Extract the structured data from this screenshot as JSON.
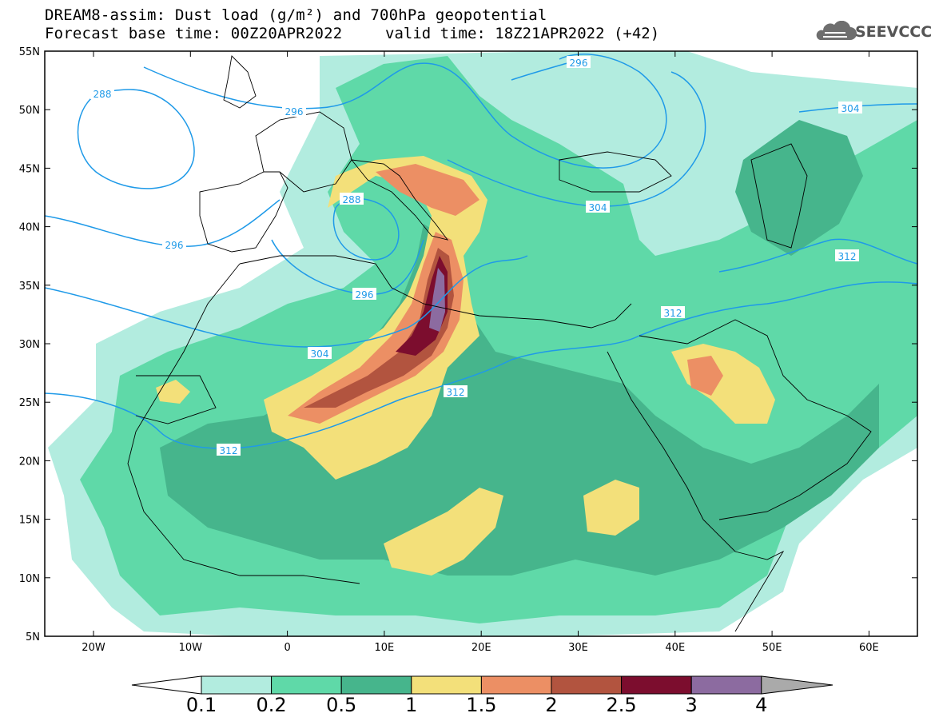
{
  "header": {
    "line1": "DREAM8-assim: Dust load (g/m²) and 700hPa geopotential",
    "line2": "Forecast base time: 00Z20APR2022",
    "line2b": "valid time: 18Z21APR2022 (+42)",
    "logo_text": "SEEVCCC"
  },
  "axes": {
    "lat_labels": [
      "55N",
      "50N",
      "45N",
      "40N",
      "35N",
      "30N",
      "25N",
      "20N",
      "15N",
      "10N",
      "5N"
    ],
    "lon_labels": [
      "20W",
      "10W",
      "0",
      "10E",
      "20E",
      "30E",
      "40E",
      "50E",
      "60E"
    ]
  },
  "contours": {
    "labels": [
      "288",
      "296",
      "296",
      "304",
      "304",
      "312",
      "312",
      "312",
      "296",
      "288",
      "296",
      "304",
      "304",
      "312"
    ]
  },
  "colorbar": {
    "labels": [
      "0.1",
      "0.2",
      "0.5",
      "1",
      "1.5",
      "2",
      "2.5",
      "3",
      "4"
    ],
    "colors": [
      "#ffffff",
      "#b2ecdf",
      "#5fd9a8",
      "#46b58c",
      "#f3e07a",
      "#ec8f64",
      "#b2543f",
      "#7c0d2e",
      "#8c6ba0",
      "#aaaaaa"
    ]
  },
  "palette": {
    "ocean": "#ffffff",
    "low": "#b2ecdf",
    "mid": "#5fd9a8",
    "dense": "#46b58c",
    "yellow": "#f3e07a",
    "orange": "#ec8f64",
    "brown": "#b2543f",
    "maroon": "#7c0d2e",
    "purple": "#8c6ba0",
    "contour": "#1f9ae8"
  }
}
